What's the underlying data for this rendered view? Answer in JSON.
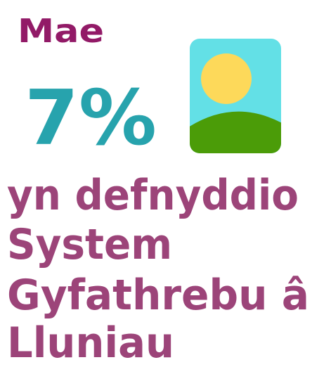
{
  "intro": "Mae",
  "stat": "7%",
  "description_lines": [
    "yn defnyddio",
    "System",
    "Gyfathrebu â",
    "Lluniau"
  ]
}
